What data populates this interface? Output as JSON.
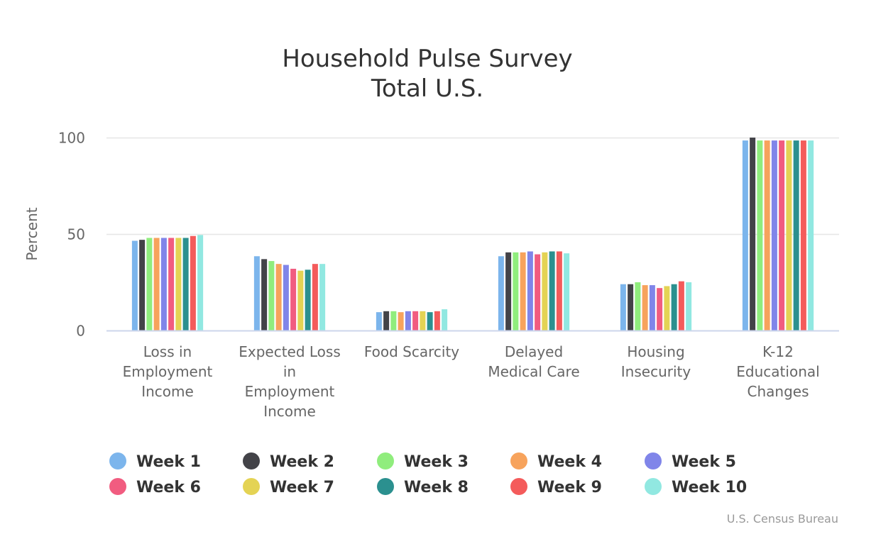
{
  "chart_data": {
    "type": "bar",
    "title": [
      "Household Pulse Survey",
      "Total U.S."
    ],
    "ylabel": "Percent",
    "xlabel": "",
    "ylim": [
      0,
      100
    ],
    "yticks": [
      0,
      50,
      100
    ],
    "grid": true,
    "legend_position": "bottom",
    "categories": [
      [
        "Loss in",
        "Employment",
        "Income"
      ],
      [
        "Expected Loss",
        "in",
        "Employment",
        "Income"
      ],
      [
        "Food Scarcity"
      ],
      [
        "Delayed",
        "Medical Care"
      ],
      [
        "Housing",
        "Insecurity"
      ],
      [
        "K-12",
        "Educational",
        "Changes"
      ]
    ],
    "series": [
      {
        "name": "Week 1",
        "color": "#7cb5ec",
        "values": [
          46.5,
          38.5,
          9.5,
          38.5,
          24,
          98.5
        ]
      },
      {
        "name": "Week 2",
        "color": "#434348",
        "values": [
          47,
          37,
          10,
          40.5,
          24,
          100
        ]
      },
      {
        "name": "Week 3",
        "color": "#90ed7d",
        "values": [
          48,
          36,
          10,
          40.5,
          25,
          98.5
        ]
      },
      {
        "name": "Week 4",
        "color": "#f7a35c",
        "values": [
          48,
          34.5,
          9.5,
          40.5,
          23.5,
          98.5
        ]
      },
      {
        "name": "Week 5",
        "color": "#8085e9",
        "values": [
          48,
          34,
          10,
          41,
          23.5,
          98.5
        ]
      },
      {
        "name": "Week 6",
        "color": "#f15c80",
        "values": [
          48,
          32,
          10,
          39.5,
          22,
          98.5
        ]
      },
      {
        "name": "Week 7",
        "color": "#e4d354",
        "values": [
          48,
          31,
          10,
          40.5,
          23,
          98.5
        ]
      },
      {
        "name": "Week 8",
        "color": "#2b908f",
        "values": [
          48,
          31.5,
          9.5,
          41,
          24,
          98.5
        ]
      },
      {
        "name": "Week 9",
        "color": "#f45b5b",
        "values": [
          49,
          34.5,
          10,
          41,
          25.5,
          98.5
        ]
      },
      {
        "name": "Week 10",
        "color": "#91e8e1",
        "values": [
          49.5,
          34.5,
          11,
          40,
          25,
          98.5
        ]
      }
    ],
    "credit": "U.S. Census Bureau",
    "colors": {
      "grid": "#e6e6e6",
      "axis": "#ccd6eb",
      "text": "#666666",
      "title": "#333333"
    }
  }
}
